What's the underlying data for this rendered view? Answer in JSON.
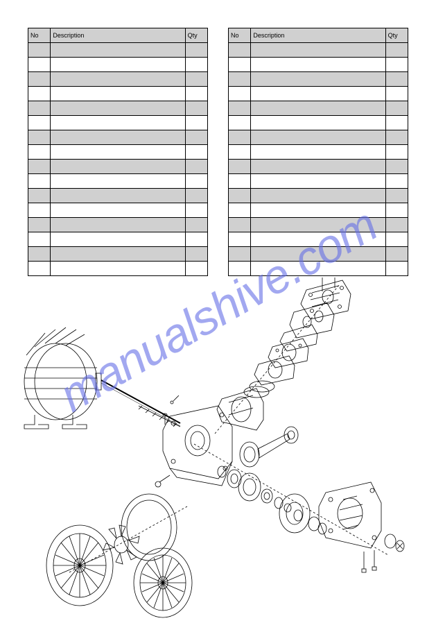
{
  "watermark_text": "manualshive.com",
  "watermark_color": "rgba(100, 110, 230, 0.6)",
  "table_left": {
    "headers": [
      "No",
      "Description",
      "Qty"
    ],
    "rows": [
      [
        "",
        "",
        ""
      ],
      [
        "",
        "",
        ""
      ],
      [
        "",
        "",
        ""
      ],
      [
        "",
        "",
        ""
      ],
      [
        "",
        "",
        ""
      ],
      [
        "",
        "",
        ""
      ],
      [
        "",
        "",
        ""
      ],
      [
        "",
        "",
        ""
      ],
      [
        "",
        "",
        ""
      ],
      [
        "",
        "",
        ""
      ],
      [
        "",
        "",
        ""
      ],
      [
        "",
        "",
        ""
      ],
      [
        "",
        "",
        ""
      ],
      [
        "",
        "",
        ""
      ],
      [
        "",
        "",
        ""
      ],
      [
        "",
        "",
        ""
      ]
    ]
  },
  "table_right": {
    "headers": [
      "No",
      "Description",
      "Qty"
    ],
    "rows": [
      [
        "",
        "",
        ""
      ],
      [
        "",
        "",
        ""
      ],
      [
        "",
        "",
        ""
      ],
      [
        "",
        "",
        ""
      ],
      [
        "",
        "",
        ""
      ],
      [
        "",
        "",
        ""
      ],
      [
        "",
        "",
        ""
      ],
      [
        "",
        "",
        ""
      ],
      [
        "",
        "",
        ""
      ],
      [
        "",
        "",
        ""
      ],
      [
        "",
        "",
        ""
      ],
      [
        "",
        "",
        ""
      ],
      [
        "",
        "",
        ""
      ],
      [
        "",
        "",
        ""
      ],
      [
        "",
        "",
        ""
      ],
      [
        "",
        "",
        ""
      ]
    ]
  },
  "diagram": {
    "type": "exploded-view",
    "stroke_color": "#000000",
    "background_color": "#ffffff",
    "stroke_width": 0.8
  }
}
